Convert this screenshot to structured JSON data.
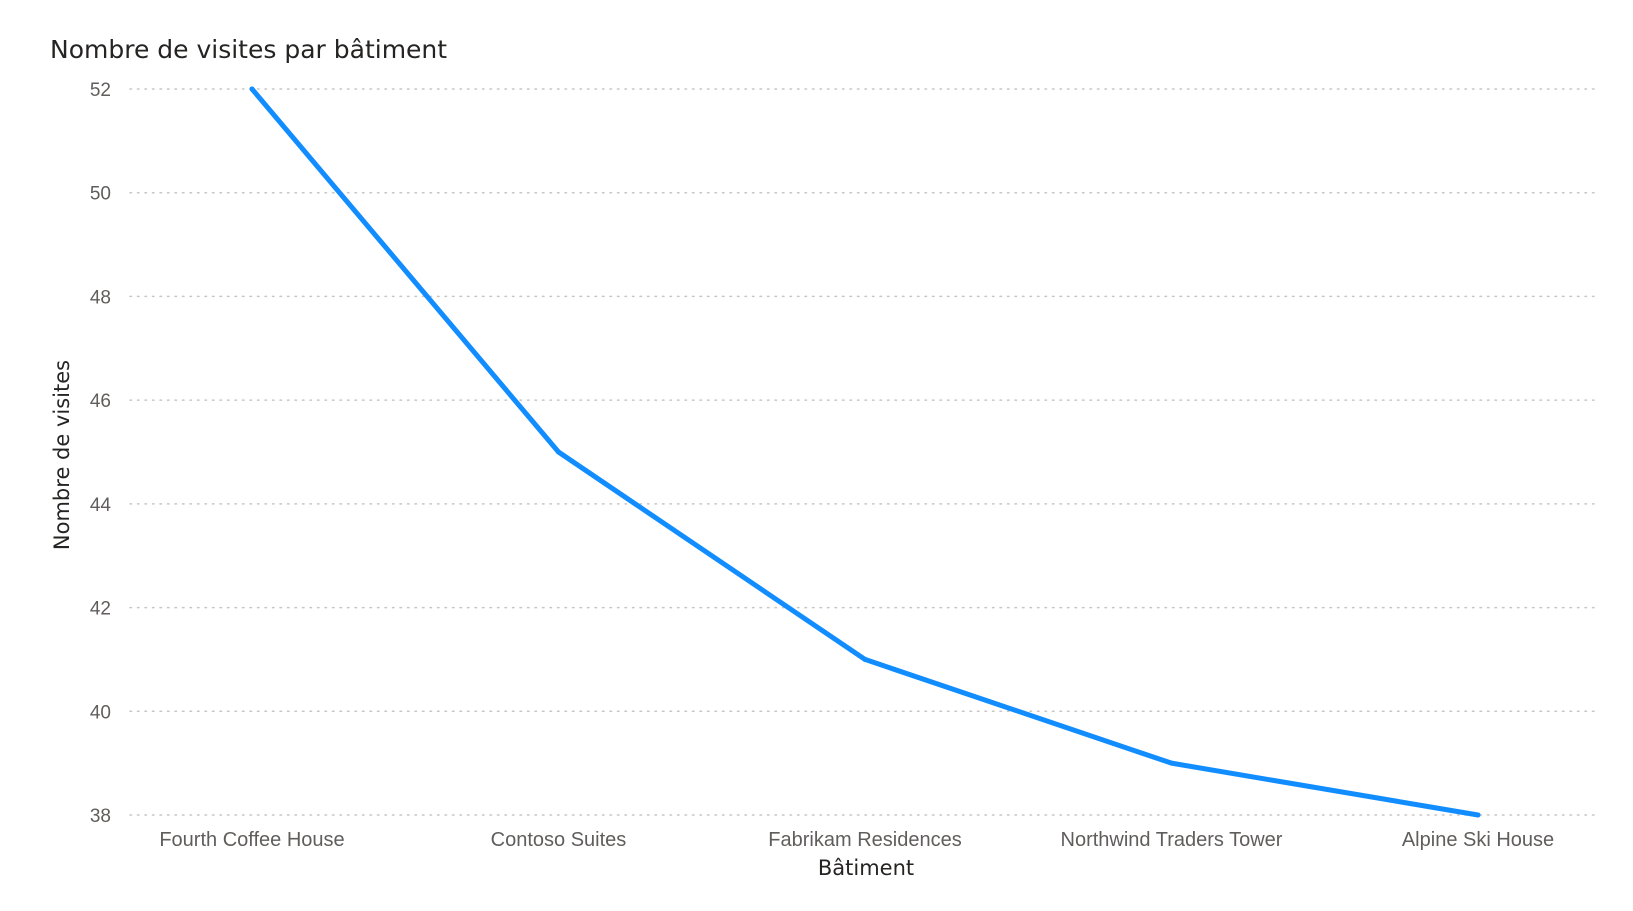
{
  "chart_data": {
    "type": "line",
    "title": "Nombre de visites par bâtiment",
    "xlabel": "Bâtiment",
    "ylabel": "Nombre de visites",
    "categories": [
      "Fourth Coffee House",
      "Contoso Suites",
      "Fabrikam Residences",
      "Northwind Traders Tower",
      "Alpine Ski House"
    ],
    "series": [
      {
        "values": [
          52,
          45,
          41,
          39,
          38
        ],
        "color": "#118dff"
      }
    ],
    "yticks": [
      38,
      40,
      42,
      44,
      46,
      48,
      50,
      52
    ],
    "ylim": [
      38,
      52
    ],
    "grid": true,
    "legend": "none"
  }
}
